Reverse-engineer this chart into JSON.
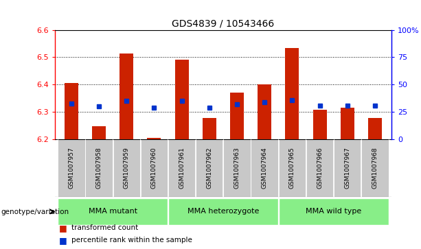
{
  "title": "GDS4839 / 10543466",
  "samples": [
    "GSM1007957",
    "GSM1007958",
    "GSM1007959",
    "GSM1007960",
    "GSM1007961",
    "GSM1007962",
    "GSM1007963",
    "GSM1007964",
    "GSM1007965",
    "GSM1007966",
    "GSM1007967",
    "GSM1007968"
  ],
  "bar_tops": [
    6.405,
    6.248,
    6.513,
    6.205,
    6.49,
    6.278,
    6.37,
    6.402,
    6.535,
    6.308,
    6.315,
    6.278
  ],
  "bar_base": 6.2,
  "percentile_ranks": [
    33,
    30,
    35,
    29,
    35,
    29,
    32,
    34,
    36,
    31,
    31,
    31
  ],
  "ylim_left": [
    6.2,
    6.6
  ],
  "ylim_right": [
    0,
    100
  ],
  "yticks_left": [
    6.2,
    6.3,
    6.4,
    6.5,
    6.6
  ],
  "yticks_right": [
    0,
    25,
    50,
    75,
    100
  ],
  "ytick_labels_right": [
    "0",
    "25",
    "50",
    "75",
    "100%"
  ],
  "bar_color": "#cc2200",
  "dot_color": "#0033cc",
  "groups": [
    {
      "label": "MMA mutant",
      "start": 0,
      "end": 3
    },
    {
      "label": "MMA heterozygote",
      "start": 4,
      "end": 7
    },
    {
      "label": "MMA wild type",
      "start": 8,
      "end": 11
    }
  ],
  "group_color": "#88ee88",
  "genotype_label": "genotype/variation",
  "legend_bar_label": "transformed count",
  "legend_dot_label": "percentile rank within the sample",
  "cell_bg": "#c8c8c8",
  "title_fontsize": 10,
  "grid_yticks": [
    6.3,
    6.4,
    6.5
  ]
}
